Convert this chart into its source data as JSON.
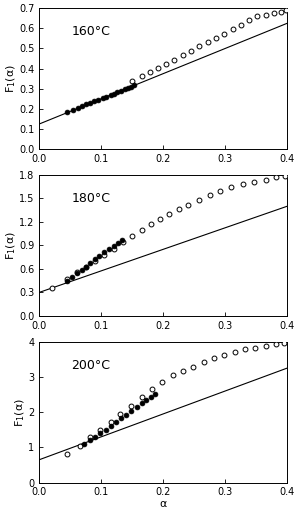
{
  "panels": [
    {
      "temp_label": "160°C",
      "ylim": [
        0.0,
        0.7
      ],
      "yticks": [
        0.0,
        0.1,
        0.2,
        0.3,
        0.4,
        0.5,
        0.6,
        0.7
      ],
      "ylabel": "F$_{1}$(α)",
      "line_slope": 1.25,
      "line_intercept": 0.125,
      "filled_alpha": [
        0.045,
        0.055,
        0.062,
        0.068,
        0.075,
        0.082,
        0.088,
        0.095,
        0.102,
        0.108,
        0.115,
        0.12,
        0.126,
        0.132,
        0.138,
        0.143,
        0.148,
        0.153
      ],
      "filled_y": [
        0.185,
        0.195,
        0.205,
        0.215,
        0.222,
        0.23,
        0.237,
        0.245,
        0.252,
        0.26,
        0.268,
        0.275,
        0.282,
        0.29,
        0.297,
        0.305,
        0.31,
        0.316
      ],
      "open_alpha": [
        0.15,
        0.165,
        0.178,
        0.192,
        0.205,
        0.218,
        0.232,
        0.245,
        0.258,
        0.272,
        0.285,
        0.298,
        0.312,
        0.325,
        0.338,
        0.352,
        0.365,
        0.378,
        0.39,
        0.398
      ],
      "open_y": [
        0.34,
        0.365,
        0.385,
        0.405,
        0.425,
        0.445,
        0.465,
        0.488,
        0.51,
        0.53,
        0.55,
        0.572,
        0.596,
        0.618,
        0.64,
        0.66,
        0.668,
        0.675,
        0.68,
        0.69
      ]
    },
    {
      "temp_label": "180°C",
      "ylim": [
        0.0,
        1.8
      ],
      "yticks": [
        0.0,
        0.3,
        0.6,
        0.9,
        1.2,
        1.5,
        1.8
      ],
      "ylabel": "F$_{1}$(α)",
      "line_slope": 2.75,
      "line_intercept": 0.3,
      "filled_alpha": [
        0.045,
        0.053,
        0.06,
        0.068,
        0.075,
        0.082,
        0.09,
        0.097,
        0.105,
        0.112,
        0.12,
        0.127,
        0.133
      ],
      "filled_y": [
        0.44,
        0.5,
        0.55,
        0.59,
        0.63,
        0.67,
        0.72,
        0.76,
        0.81,
        0.85,
        0.89,
        0.93,
        0.97
      ],
      "open_alpha": [
        0.02,
        0.045,
        0.06,
        0.075,
        0.09,
        0.105,
        0.12,
        0.135,
        0.15,
        0.165,
        0.18,
        0.195,
        0.21,
        0.225,
        0.24,
        0.258,
        0.275,
        0.292,
        0.31,
        0.328,
        0.346,
        0.365,
        0.382,
        0.396
      ],
      "open_y": [
        0.35,
        0.47,
        0.56,
        0.63,
        0.7,
        0.78,
        0.86,
        0.94,
        1.02,
        1.09,
        1.17,
        1.24,
        1.3,
        1.37,
        1.42,
        1.48,
        1.54,
        1.6,
        1.65,
        1.68,
        1.71,
        1.74,
        1.77,
        1.79
      ]
    },
    {
      "temp_label": "200°C",
      "ylim": [
        0.0,
        4.0
      ],
      "yticks": [
        0.0,
        1.0,
        2.0,
        3.0,
        4.0
      ],
      "ylabel": "F$_{1}$(α)",
      "line_slope": 6.5,
      "line_intercept": 0.65,
      "filled_alpha": [
        0.072,
        0.082,
        0.09,
        0.098,
        0.107,
        0.116,
        0.124,
        0.132,
        0.14,
        0.148,
        0.157,
        0.165,
        0.172,
        0.18,
        0.187
      ],
      "filled_y": [
        1.1,
        1.2,
        1.28,
        1.4,
        1.5,
        1.62,
        1.73,
        1.84,
        1.93,
        2.02,
        2.14,
        2.25,
        2.34,
        2.44,
        2.52
      ],
      "open_alpha": [
        0.045,
        0.065,
        0.082,
        0.098,
        0.115,
        0.13,
        0.148,
        0.165,
        0.182,
        0.198,
        0.215,
        0.232,
        0.248,
        0.265,
        0.282,
        0.298,
        0.315,
        0.332,
        0.348,
        0.365,
        0.382,
        0.395
      ],
      "open_y": [
        0.8,
        1.05,
        1.28,
        1.5,
        1.72,
        1.95,
        2.18,
        2.42,
        2.65,
        2.85,
        3.05,
        3.18,
        3.28,
        3.42,
        3.55,
        3.62,
        3.7,
        3.78,
        3.83,
        3.88,
        3.92,
        3.96
      ]
    }
  ],
  "xlim": [
    0.0,
    0.4
  ],
  "xticks": [
    0.0,
    0.1,
    0.2,
    0.3,
    0.4
  ],
  "xlabel": "α",
  "bg_color": "#ffffff",
  "line_color": "#000000",
  "filled_marker_color": "#000000",
  "open_marker_color": "#ffffff",
  "marker_edge_color": "#000000",
  "marker_size": 3.5,
  "line_width": 0.8,
  "label_fontsize": 8,
  "tick_fontsize": 7,
  "annot_fontsize": 9
}
